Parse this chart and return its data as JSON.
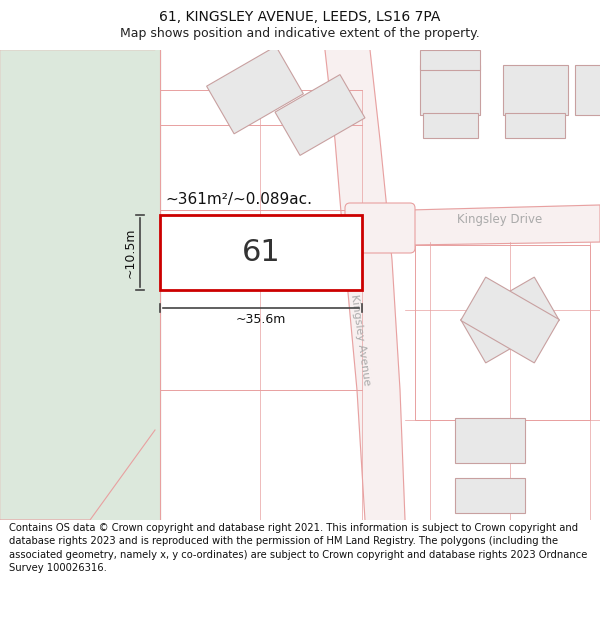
{
  "title": "61, KINGSLEY AVENUE, LEEDS, LS16 7PA",
  "subtitle": "Map shows position and indicative extent of the property.",
  "footer": "Contains OS data © Crown copyright and database right 2021. This information is subject to Crown copyright and database rights 2023 and is reproduced with the permission of HM Land Registry. The polygons (including the associated geometry, namely x, y co-ordinates) are subject to Crown copyright and database rights 2023 Ordnance Survey 100026316.",
  "area_label": "~361m²/~0.089ac.",
  "width_label": "~35.6m",
  "height_label": "~10.5m",
  "plot_number": "61",
  "bg_color": "#ffffff",
  "map_bg": "#ffffff",
  "green_area_color": "#dce8dc",
  "green_border_color": "#c5d8c5",
  "road_fill": "#f8f0f0",
  "road_border_color": "#e8a0a0",
  "highlight_rect_color": "#cc0000",
  "building_fill": "#e8e8e8",
  "building_stroke": "#c8a0a0",
  "road_label_color": "#aaaaaa",
  "title_fontsize": 10,
  "subtitle_fontsize": 9,
  "footer_fontsize": 7.2,
  "dim_line_color": "#444444",
  "plot_label_fontsize": 22,
  "area_fontsize": 11,
  "dim_fontsize": 9
}
